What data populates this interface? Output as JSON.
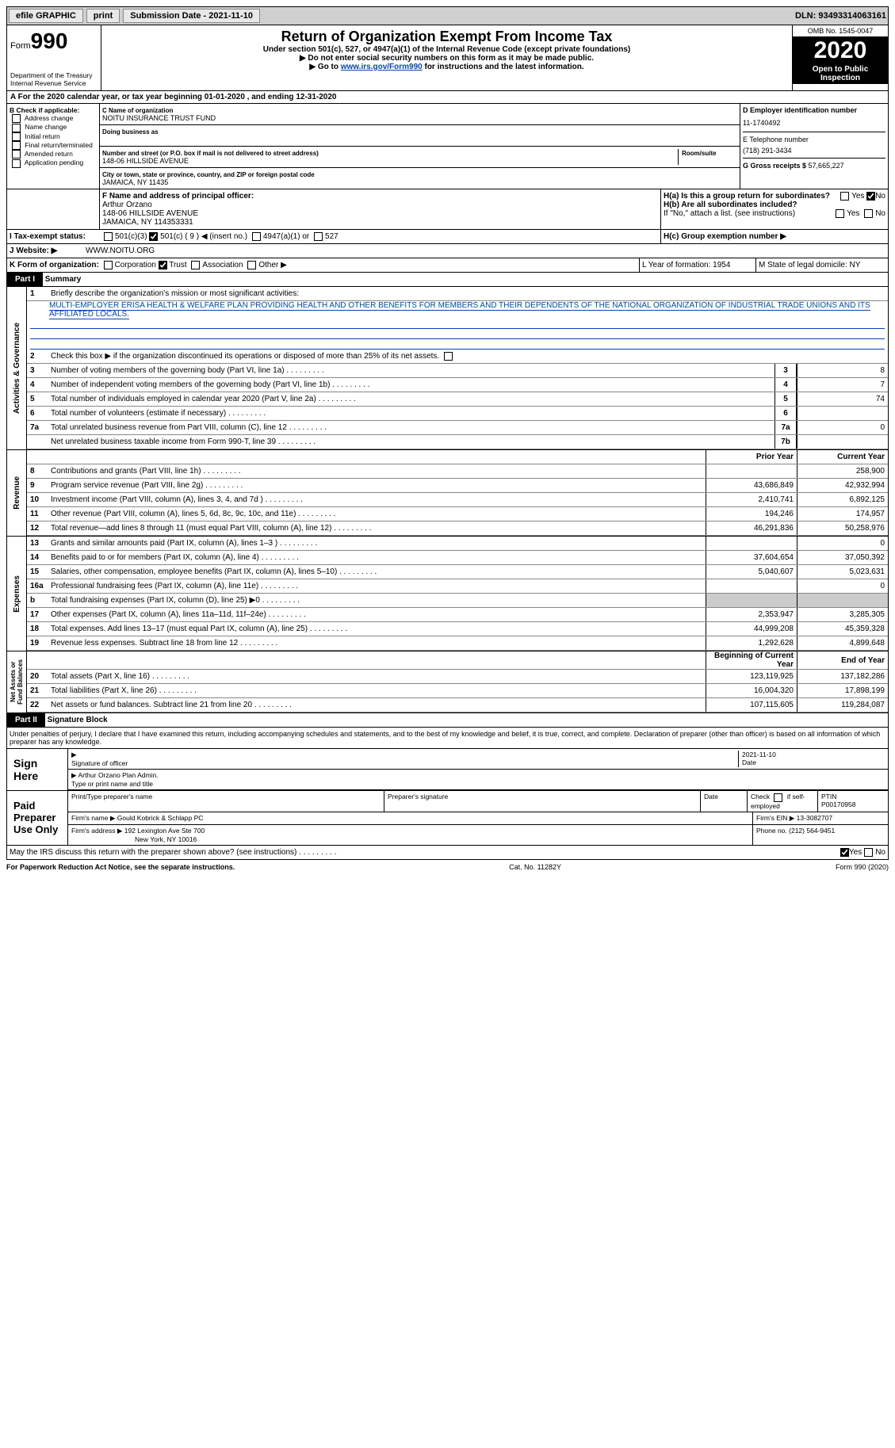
{
  "topbar": {
    "efile": "efile GRAPHIC",
    "print": "print",
    "subdate_lbl": "Submission Date - ",
    "subdate": "2021-11-10",
    "dln_lbl": "DLN: ",
    "dln": "93493314063161"
  },
  "header": {
    "form_prefix": "Form",
    "form_no": "990",
    "dept": "Department of the Treasury\nInternal Revenue Service",
    "title": "Return of Organization Exempt From Income Tax",
    "sub1": "Under section 501(c), 527, or 4947(a)(1) of the Internal Revenue Code (except private foundations)",
    "sub2": "▶ Do not enter social security numbers on this form as it may be made public.",
    "sub3_pre": "▶ Go to ",
    "sub3_link": "www.irs.gov/Form990",
    "sub3_post": " for instructions and the latest information.",
    "omb": "OMB No. 1545-0047",
    "year": "2020",
    "open": "Open to Public Inspection"
  },
  "row_a": "A For the 2020 calendar year, or tax year beginning 01-01-2020  , and ending 12-31-2020",
  "col_b": {
    "hdr": "B Check if applicable:",
    "items": [
      "Address change",
      "Name change",
      "Initial return",
      "Final return/terminated",
      "Amended return",
      "Application pending"
    ]
  },
  "col_c": {
    "name_lbl": "C Name of organization",
    "name": "NOITU INSURANCE TRUST FUND",
    "dba_lbl": "Doing business as",
    "street_lbl": "Number and street (or P.O. box if mail is not delivered to street address)",
    "room_lbl": "Room/suite",
    "street": "148-06 HILLSIDE AVENUE",
    "city_lbl": "City or town, state or province, country, and ZIP or foreign postal code",
    "city": "JAMAICA, NY  11435",
    "f_lbl": "F Name and address of principal officer:",
    "f_name": "Arthur Orzano",
    "f_addr1": "148-06 HILLSIDE AVENUE",
    "f_addr2": "JAMAICA, NY  114353331"
  },
  "col_d": {
    "ein_lbl": "D Employer identification number",
    "ein": "11-1740492",
    "tel_lbl": "E Telephone number",
    "tel": "(718) 291-3434",
    "gross_lbl": "G Gross receipts $ ",
    "gross": "57,665,227"
  },
  "h": {
    "a": "H(a)  Is this a group return for subordinates?",
    "b": "H(b)  Are all subordinates included?",
    "note": "If \"No,\" attach a list. (see instructions)",
    "c": "H(c)  Group exemption number ▶",
    "yes": "Yes",
    "no": "No"
  },
  "row_i": {
    "lbl": "I    Tax-exempt status:",
    "o1": "501(c)(3)",
    "o2": "501(c) ( 9 ) ◀ (insert no.)",
    "o3": "4947(a)(1) or",
    "o4": "527"
  },
  "row_j": {
    "lbl": "J    Website: ▶",
    "val": "WWW.NOITU.ORG"
  },
  "row_k": {
    "lbl": "K Form of organization:",
    "o1": "Corporation",
    "o2": "Trust",
    "o3": "Association",
    "o4": "Other ▶",
    "l": "L Year of formation: 1954",
    "m": "M State of legal domicile: NY"
  },
  "parts": {
    "p1": "Part I",
    "p1t": "Summary",
    "p2": "Part II",
    "p2t": "Signature Block"
  },
  "summary": {
    "q1": "Briefly describe the organization's mission or most significant activities:",
    "mission": "MULTI-EMPLOYER ERISA HEALTH & WELFARE PLAN PROVIDING HEALTH AND OTHER BENEFITS FOR MEMBERS AND THEIR DEPENDENTS OF THE NATIONAL ORGANIZATION OF INDUSTRIAL TRADE UNIONS AND ITS AFFILIATED LOCALS.",
    "q2": "Check this box ▶       if the organization discontinued its operations or disposed of more than 25% of its net assets.",
    "lines_gov": [
      {
        "n": "3",
        "t": "Number of voting members of the governing body (Part VI, line 1a)",
        "box": "3",
        "v": "8"
      },
      {
        "n": "4",
        "t": "Number of independent voting members of the governing body (Part VI, line 1b)",
        "box": "4",
        "v": "7"
      },
      {
        "n": "5",
        "t": "Total number of individuals employed in calendar year 2020 (Part V, line 2a)",
        "box": "5",
        "v": "74"
      },
      {
        "n": "6",
        "t": "Total number of volunteers (estimate if necessary)",
        "box": "6",
        "v": ""
      },
      {
        "n": "7a",
        "t": "Total unrelated business revenue from Part VIII, column (C), line 12",
        "box": "7a",
        "v": "0"
      },
      {
        "n": "",
        "t": "Net unrelated business taxable income from Form 990-T, line 39",
        "box": "7b",
        "v": ""
      }
    ],
    "hdr_prior": "Prior Year",
    "hdr_curr": "Current Year",
    "lines_rev": [
      {
        "n": "8",
        "t": "Contributions and grants (Part VIII, line 1h)",
        "p": "",
        "c": "258,900"
      },
      {
        "n": "9",
        "t": "Program service revenue (Part VIII, line 2g)",
        "p": "43,686,849",
        "c": "42,932,994"
      },
      {
        "n": "10",
        "t": "Investment income (Part VIII, column (A), lines 3, 4, and 7d )",
        "p": "2,410,741",
        "c": "6,892,125"
      },
      {
        "n": "11",
        "t": "Other revenue (Part VIII, column (A), lines 5, 6d, 8c, 9c, 10c, and 11e)",
        "p": "194,246",
        "c": "174,957"
      },
      {
        "n": "12",
        "t": "Total revenue—add lines 8 through 11 (must equal Part VIII, column (A), line 12)",
        "p": "46,291,836",
        "c": "50,258,976"
      }
    ],
    "lines_exp": [
      {
        "n": "13",
        "t": "Grants and similar amounts paid (Part IX, column (A), lines 1–3 )",
        "p": "",
        "c": "0"
      },
      {
        "n": "14",
        "t": "Benefits paid to or for members (Part IX, column (A), line 4)",
        "p": "37,604,654",
        "c": "37,050,392"
      },
      {
        "n": "15",
        "t": "Salaries, other compensation, employee benefits (Part IX, column (A), lines 5–10)",
        "p": "5,040,607",
        "c": "5,023,631"
      },
      {
        "n": "16a",
        "t": "Professional fundraising fees (Part IX, column (A), line 11e)",
        "p": "",
        "c": "0"
      },
      {
        "n": "b",
        "t": "Total fundraising expenses (Part IX, column (D), line 25) ▶0",
        "p": "shade",
        "c": "shade"
      },
      {
        "n": "17",
        "t": "Other expenses (Part IX, column (A), lines 11a–11d, 11f–24e)",
        "p": "2,353,947",
        "c": "3,285,305"
      },
      {
        "n": "18",
        "t": "Total expenses. Add lines 13–17 (must equal Part IX, column (A), line 25)",
        "p": "44,999,208",
        "c": "45,359,328"
      },
      {
        "n": "19",
        "t": "Revenue less expenses. Subtract line 18 from line 12",
        "p": "1,292,628",
        "c": "4,899,648"
      }
    ],
    "hdr_begin": "Beginning of Current Year",
    "hdr_end": "End of Year",
    "lines_net": [
      {
        "n": "20",
        "t": "Total assets (Part X, line 16)",
        "p": "123,119,925",
        "c": "137,182,286"
      },
      {
        "n": "21",
        "t": "Total liabilities (Part X, line 26)",
        "p": "16,004,320",
        "c": "17,898,199"
      },
      {
        "n": "22",
        "t": "Net assets or fund balances. Subtract line 21 from line 20",
        "p": "107,115,605",
        "c": "119,284,087"
      }
    ]
  },
  "vlabels": {
    "gov": "Activities & Governance",
    "rev": "Revenue",
    "exp": "Expenses",
    "net": "Net Assets or\nFund Balances"
  },
  "penalties": "Under penalties of perjury, I declare that I have examined this return, including accompanying schedules and statements, and to the best of my knowledge and belief, it is true, correct, and complete. Declaration of preparer (other than officer) is based on all information of which preparer has any knowledge.",
  "sign": {
    "lbl": "Sign Here",
    "sig_lbl": "Signature of officer",
    "date_lbl": "Date",
    "date": "2021-11-10",
    "name": "Arthur Orzano Plan Admin.",
    "name_lbl": "Type or print name and title"
  },
  "paid": {
    "lbl": "Paid Preparer Use Only",
    "c1": "Print/Type preparer's name",
    "c2": "Preparer's signature",
    "c3": "Date",
    "c4_pre": "Check",
    "c4": "if self-employed",
    "c5_lbl": "PTIN",
    "c5": "P00170958",
    "firm_lbl": "Firm's name    ▶",
    "firm": "Gould Kobrick & Schlapp PC",
    "ein_lbl": "Firm's EIN ▶",
    "ein": "13-3082707",
    "addr_lbl": "Firm's address ▶",
    "addr1": "192 Lexington Ave Ste 700",
    "addr2": "New York, NY  10016",
    "phone_lbl": "Phone no.",
    "phone": "(212) 564-9451"
  },
  "discuss": "May the IRS discuss this return with the preparer shown above? (see instructions)",
  "footer": {
    "l": "For Paperwork Reduction Act Notice, see the separate instructions.",
    "m": "Cat. No. 11282Y",
    "r": "Form 990 (2020)"
  },
  "colors": {
    "link": "#0645ad",
    "shade": "#cccccc"
  }
}
